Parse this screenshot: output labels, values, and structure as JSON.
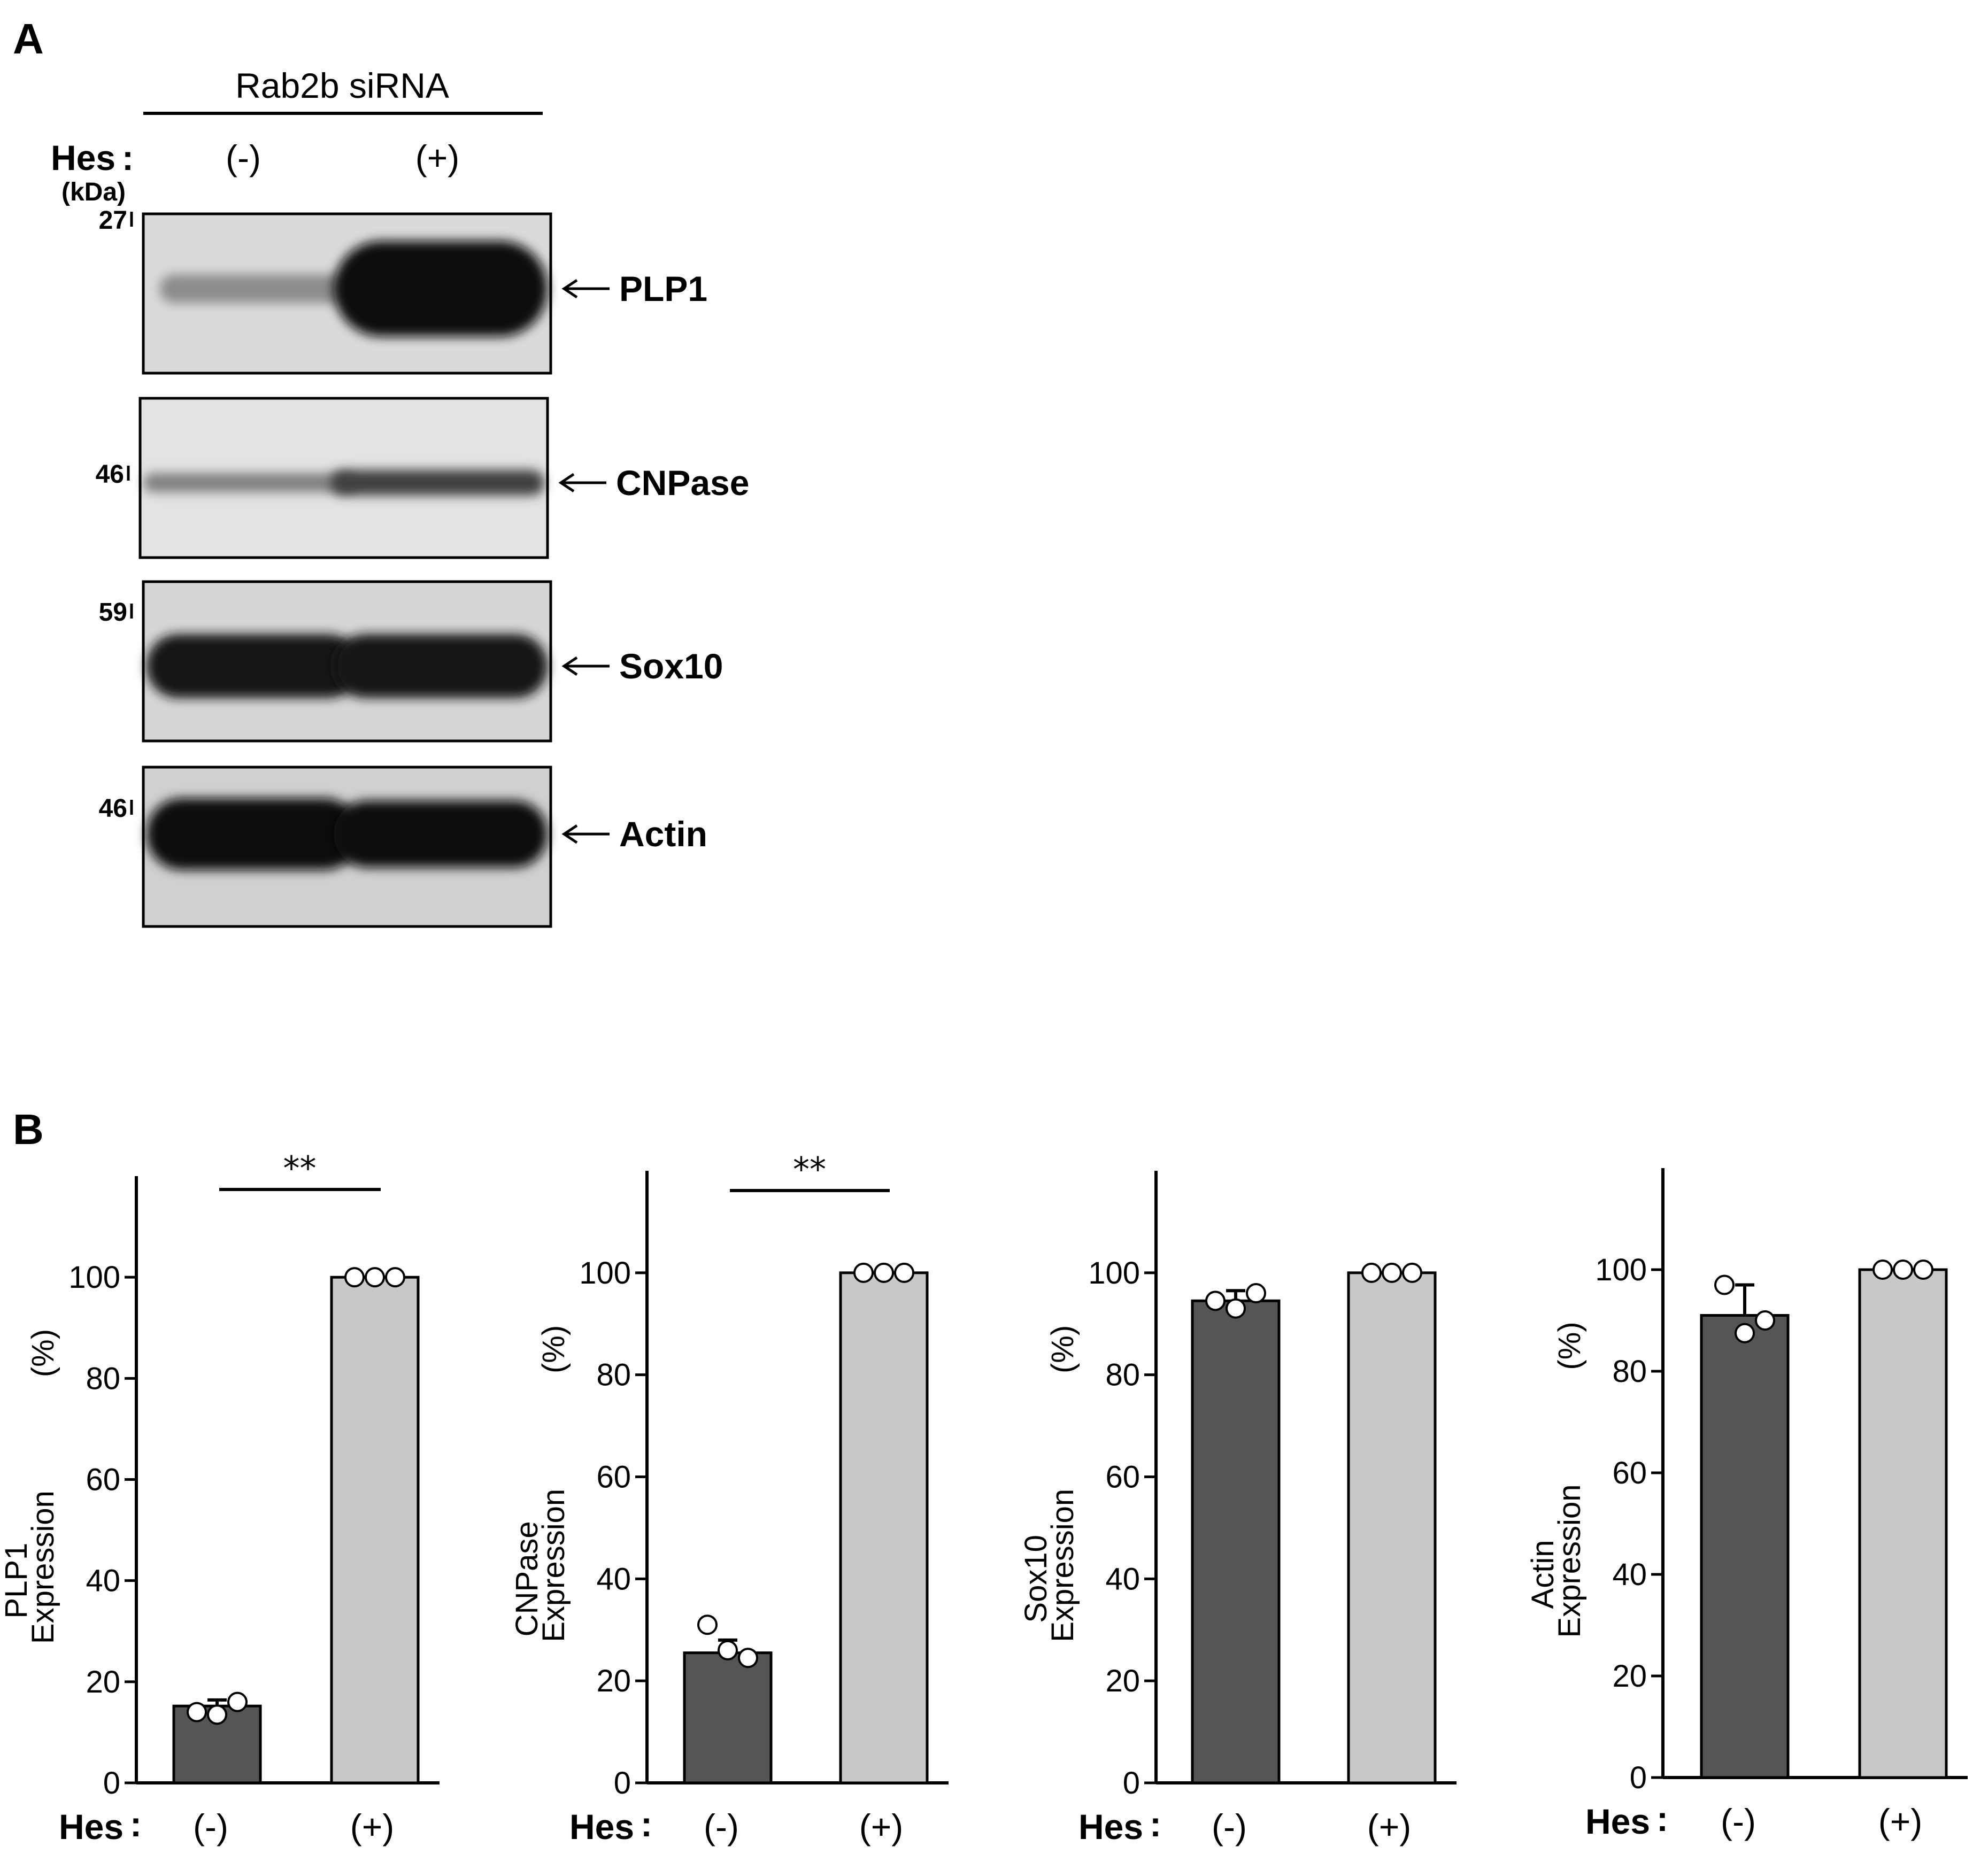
{
  "panel_a": {
    "letter": "A",
    "header": "Rab2b siRNA",
    "hes_label": "Hes",
    "hes_neg": "(-)",
    "hes_pos": "(+)",
    "kda_label": "(kDa)",
    "blots": [
      {
        "protein": "PLP1",
        "marker": "27",
        "background": "#dadada",
        "bands": [
          {
            "lane": 0,
            "darkness": 0.45,
            "thickness": 0.18
          },
          {
            "lane": 1,
            "darkness": 0.95,
            "thickness": 0.6
          }
        ]
      },
      {
        "protein": "CNPase",
        "marker": "46",
        "background": "#e3e3e3",
        "bands": [
          {
            "lane": 0,
            "darkness": 0.5,
            "thickness": 0.12
          },
          {
            "lane": 1,
            "darkness": 0.75,
            "thickness": 0.16
          }
        ]
      },
      {
        "protein": "Sox10",
        "marker": "59",
        "background": "#d6d6d6",
        "bands": [
          {
            "lane": 0,
            "darkness": 0.92,
            "thickness": 0.4
          },
          {
            "lane": 1,
            "darkness": 0.92,
            "thickness": 0.4
          }
        ]
      },
      {
        "protein": "Actin",
        "marker": "46",
        "background": "#d0d0d0",
        "bands": [
          {
            "lane": 0,
            "darkness": 0.95,
            "thickness": 0.45
          },
          {
            "lane": 1,
            "darkness": 0.95,
            "thickness": 0.42
          }
        ]
      }
    ]
  },
  "panel_b": {
    "letter": "B",
    "hes_label": "Hes",
    "colors": {
      "neg": "#555555",
      "pos": "#c8c8c8"
    },
    "significance": "**"
  },
  "chart_data": [
    {
      "type": "bar",
      "ylabel_top": "PLP1",
      "ylabel_bottom": "Expression",
      "yunit": "(%)",
      "categories": [
        "(-)",
        "(+)"
      ],
      "values": [
        15.2,
        100
      ],
      "errors": [
        1.2,
        0
      ],
      "points": [
        [
          14,
          13.5,
          16
        ],
        [
          100,
          100,
          100
        ]
      ],
      "ylim": [
        0,
        120
      ],
      "yticks": [
        0,
        20,
        40,
        60,
        80,
        100
      ],
      "significance": true
    },
    {
      "type": "bar",
      "ylabel_top": "CNPase",
      "ylabel_bottom": "Expression",
      "yunit": "(%)",
      "categories": [
        "(-)",
        "(+)"
      ],
      "values": [
        25.5,
        100
      ],
      "errors": [
        2.5,
        0
      ],
      "points": [
        [
          31,
          26,
          24.5
        ],
        [
          100,
          100,
          100
        ]
      ],
      "ylim": [
        0,
        120
      ],
      "yticks": [
        0,
        20,
        40,
        60,
        80,
        100
      ],
      "significance": true
    },
    {
      "type": "bar",
      "ylabel_top": "Sox10",
      "ylabel_bottom": "Expression",
      "yunit": "(%)",
      "categories": [
        "(-)",
        "(+)"
      ],
      "values": [
        94.5,
        100
      ],
      "errors": [
        2,
        0
      ],
      "points": [
        [
          94.5,
          93,
          96
        ],
        [
          100,
          100,
          100
        ]
      ],
      "ylim": [
        0,
        120
      ],
      "yticks": [
        0,
        20,
        40,
        60,
        80,
        100
      ],
      "significance": false
    },
    {
      "type": "bar",
      "ylabel_top": "Actin",
      "ylabel_bottom": "Expression",
      "yunit": "(%)",
      "categories": [
        "(-)",
        "(+)"
      ],
      "values": [
        91,
        100
      ],
      "errors": [
        6,
        0
      ],
      "points": [
        [
          97,
          87.5,
          90
        ],
        [
          100,
          100,
          100
        ]
      ],
      "ylim": [
        0,
        120
      ],
      "yticks": [
        0,
        20,
        40,
        60,
        80,
        100
      ],
      "significance": false
    }
  ]
}
